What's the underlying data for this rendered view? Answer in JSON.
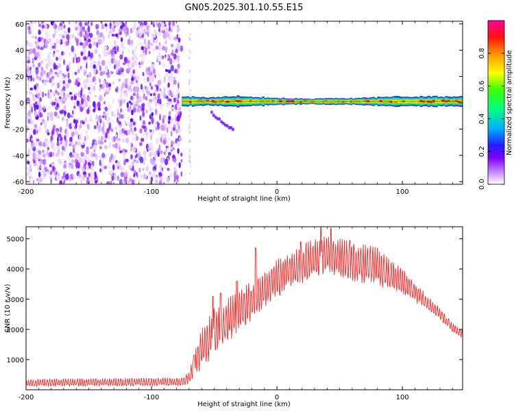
{
  "title": "GN05.2025.301.10.55.E15",
  "chart_data": [
    {
      "type": "heatmap",
      "id": "spectrogram",
      "xlabel": "Height of straight line (km)",
      "ylabel": "Frequency (Hz)",
      "xlim": [
        -200,
        148
      ],
      "ylim": [
        -62,
        62
      ],
      "xticks": [
        -200,
        -100,
        0,
        100
      ],
      "yticks": [
        -60,
        -40,
        -20,
        0,
        20,
        40,
        60
      ],
      "colorbar": {
        "label": "Normalized spectral amplitude",
        "range": [
          0,
          1
        ],
        "ticks": [
          0.0,
          0.2,
          0.4,
          0.6,
          0.8
        ],
        "colors": [
          "#ffffff",
          "#a040ff",
          "#2020ff",
          "#00c0ff",
          "#00ff40",
          "#ffff00",
          "#ff8000",
          "#ff0000",
          "#ff00a0"
        ]
      },
      "noise_region": {
        "x_range": [
          -200,
          -76
        ],
        "y_range": [
          -62,
          62
        ],
        "amplitude_range": [
          0.02,
          0.22
        ]
      },
      "signal_band": {
        "x_range": [
          -76,
          148
        ],
        "center_frequency": 1,
        "peak_amplitude": 0.95,
        "segments": [
          {
            "x": -76,
            "halfwidth": 3.5
          },
          {
            "x": -50,
            "halfwidth": 3
          },
          {
            "x": -30,
            "halfwidth": 4
          },
          {
            "x": -10,
            "halfwidth": 3
          },
          {
            "x": 20,
            "halfwidth": 2
          },
          {
            "x": 60,
            "halfwidth": 2.5
          },
          {
            "x": 95,
            "halfwidth": 3.5
          },
          {
            "x": 148,
            "halfwidth": 4
          }
        ]
      },
      "tail_feature": {
        "x": [
          -52,
          -35
        ],
        "y": [
          -8,
          -20
        ]
      }
    },
    {
      "type": "line",
      "id": "snr",
      "xlabel": "Height of straight line (km)",
      "ylabel": "SNR (10 * v/v)",
      "xlim": [
        -200,
        148
      ],
      "ylim": [
        0,
        5400
      ],
      "xticks": [
        -200,
        -100,
        0,
        100
      ],
      "yticks": [
        1000,
        2000,
        3000,
        4000,
        5000
      ],
      "series": [
        {
          "name": "SNR",
          "color": "#e8302e",
          "envelope": {
            "x": [
              -200,
              -75,
              -70,
              -66,
              -60,
              -50,
              -40,
              -30,
              -20,
              -10,
              0,
              10,
              20,
              30,
              40,
              50,
              60,
              70,
              80,
              90,
              100,
              110,
              120,
              130,
              140,
              148
            ],
            "low": [
              100,
              120,
              200,
              400,
              700,
              1100,
              1500,
              1900,
              2300,
              2700,
              3000,
              3300,
              3500,
              3700,
              3800,
              3700,
              3600,
              3500,
              3400,
              3300,
              3100,
              2900,
              2600,
              2300,
              1900,
              1700
            ],
            "high": [
              350,
              400,
              600,
              1200,
              2000,
              2700,
              3000,
              3300,
              3600,
              3900,
              4300,
              4600,
              4800,
              5000,
              5100,
              5000,
              4900,
              4800,
              4700,
              4300,
              4000,
              3600,
              3100,
              2700,
              2200,
              2000
            ]
          },
          "spikes": [
            {
              "x": -66,
              "y": 1150
            },
            {
              "x": -51,
              "y": 3100
            },
            {
              "x": -45,
              "y": 3200
            },
            {
              "x": -32,
              "y": 3600
            },
            {
              "x": -17,
              "y": 4700
            },
            {
              "x": 19,
              "y": 4900
            },
            {
              "x": 35,
              "y": 5380
            },
            {
              "x": 43,
              "y": 5350
            },
            {
              "x": 58,
              "y": 4950
            }
          ]
        }
      ]
    }
  ]
}
